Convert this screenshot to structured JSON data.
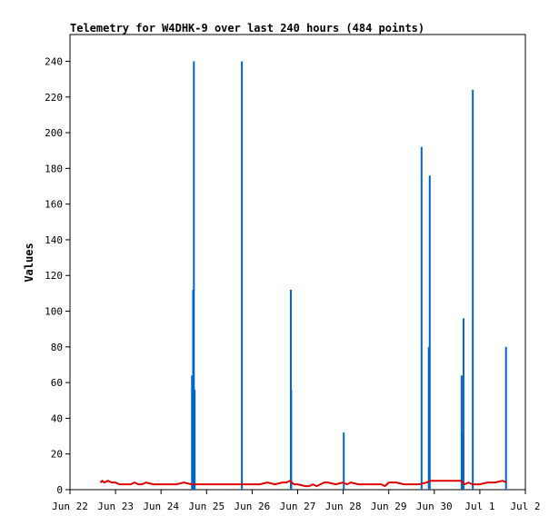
{
  "chart_data": {
    "type": "line",
    "title": "Telemetry for W4DHK-9 over last 240 hours (484 points)",
    "xlabel": "",
    "ylabel": "Values",
    "xlim": [
      0,
      240
    ],
    "ylim": [
      0,
      255
    ],
    "x_ticks": [
      {
        "label": "Jun 22",
        "x": 0
      },
      {
        "label": "Jun 23",
        "x": 24
      },
      {
        "label": "Jun 24",
        "x": 48
      },
      {
        "label": "Jun 25",
        "x": 72
      },
      {
        "label": "Jun 26",
        "x": 96
      },
      {
        "label": "Jun 27",
        "x": 120
      },
      {
        "label": "Jun 28",
        "x": 144
      },
      {
        "label": "Jun 29",
        "x": 168
      },
      {
        "label": "Jun 30",
        "x": 192
      },
      {
        "label": "Jul 1",
        "x": 216
      },
      {
        "label": "Jul 2",
        "x": 240
      }
    ],
    "y_ticks": [
      0,
      20,
      40,
      60,
      80,
      100,
      120,
      140,
      160,
      180,
      200,
      220,
      240
    ],
    "grid": false,
    "legend": "none",
    "series": [
      {
        "color": "#0066cc",
        "style": "spikes",
        "x": [
          64.3,
          64.9,
          65.3,
          65.7,
          90.6,
          116.4,
          116.6,
          144.3,
          185.3,
          189.1,
          189.6,
          206.4,
          206.8,
          207.4,
          212.3,
          229.8
        ],
        "y": [
          64,
          112,
          240,
          56,
          240,
          112,
          56,
          32,
          192,
          80,
          176,
          64,
          32,
          96,
          224,
          80
        ]
      },
      {
        "color": "#dd0000",
        "style": "line",
        "x": [
          16,
          17,
          18,
          20,
          22,
          24,
          26,
          28,
          30,
          32,
          34,
          36,
          38,
          40,
          44,
          48,
          52,
          56,
          60,
          64,
          68,
          72,
          76,
          80,
          84,
          88,
          92,
          96,
          100,
          104,
          108,
          112,
          114,
          116,
          118,
          120,
          124,
          126,
          128,
          130,
          132,
          134,
          136,
          140,
          144,
          146,
          148,
          152,
          156,
          160,
          164,
          166,
          168,
          172,
          176,
          180,
          184,
          188,
          190,
          194,
          198,
          202,
          206,
          208,
          210,
          212,
          216,
          220,
          224,
          228,
          230
        ],
        "y": [
          4,
          5,
          4,
          5,
          4,
          4,
          3,
          3,
          3,
          3,
          4,
          3,
          3,
          4,
          3,
          3,
          3,
          3,
          4,
          3,
          3,
          3,
          3,
          3,
          3,
          3,
          3,
          3,
          3,
          4,
          3,
          4,
          4,
          5,
          3,
          3,
          2,
          2,
          3,
          2,
          3,
          4,
          4,
          3,
          4,
          3,
          4,
          3,
          3,
          3,
          3,
          2,
          4,
          4,
          3,
          3,
          3,
          4,
          5,
          5,
          5,
          5,
          5,
          3,
          4,
          3,
          3,
          4,
          4,
          5,
          4
        ]
      }
    ]
  }
}
